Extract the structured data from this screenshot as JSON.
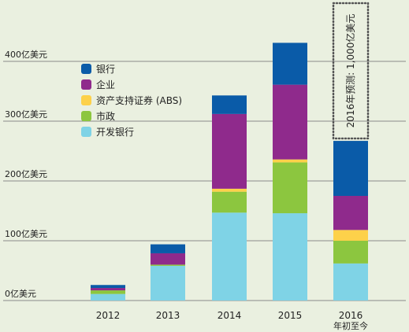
{
  "colors": {
    "background": "#eaf0e0",
    "gridline": "#8a8a8a",
    "dev_bank": "#7fd3e6",
    "municipal": "#8cc63f",
    "abs": "#fdd14a",
    "corporate": "#8f2a8c",
    "bank": "#0a5ba8"
  },
  "chart_data": {
    "type": "bar",
    "stacked": true,
    "categories": [
      "2012",
      "2013",
      "2014",
      "2015",
      "2016"
    ],
    "category_sublabels": [
      "",
      "",
      "",
      "",
      "年初至今"
    ],
    "ylim": [
      0,
      400
    ],
    "yticks": [
      {
        "value": 0,
        "label": "0亿美元"
      },
      {
        "value": 100,
        "label": "100亿美元"
      },
      {
        "value": 200,
        "label": "200亿美元"
      },
      {
        "value": 300,
        "label": "300亿美元"
      },
      {
        "value": 400,
        "label": "400亿美元"
      }
    ],
    "series": [
      {
        "name": "开发银行",
        "color_key": "dev_bank",
        "values": [
          11,
          58,
          147,
          146,
          62
        ]
      },
      {
        "name": "市政",
        "color_key": "municipal",
        "values": [
          6,
          2,
          35,
          85,
          38
        ]
      },
      {
        "name": "资产支持证券 (ABS)",
        "color_key": "abs",
        "values": [
          0,
          0,
          5,
          5,
          18
        ]
      },
      {
        "name": "企业",
        "color_key": "corporate",
        "values": [
          4,
          19,
          125,
          125,
          57
        ]
      },
      {
        "name": "银行",
        "color_key": "bank",
        "values": [
          5,
          15,
          31,
          70,
          92
        ]
      }
    ],
    "legend_order": [
      4,
      3,
      2,
      1,
      0
    ],
    "legend_position": "top-left",
    "grid": true,
    "forecast": {
      "category": "2016",
      "value": 1000,
      "label": "2016年预测: 1,000亿美元",
      "style": "dotted-box"
    }
  }
}
